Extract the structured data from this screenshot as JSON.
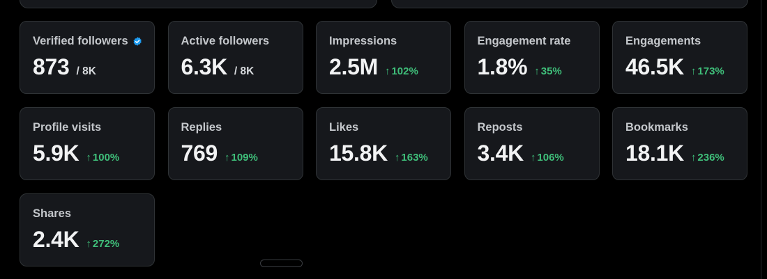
{
  "colors": {
    "background": "#000000",
    "card_background": "#16181c",
    "card_border": "#2f3336",
    "positive_change": "#3fbf7a",
    "verified_badge": "#1d9bf0"
  },
  "metrics": [
    {
      "label": "Verified followers",
      "value": "873",
      "suffix": "/ 8K",
      "change": "",
      "verified_icon": "verified-badge-icon"
    },
    {
      "label": "Active followers",
      "value": "6.3K",
      "suffix": "/ 8K",
      "change": ""
    },
    {
      "label": "Impressions",
      "value": "2.5M",
      "suffix": "",
      "change": "102%"
    },
    {
      "label": "Engagement rate",
      "value": "1.8%",
      "suffix": "",
      "change": "35%"
    },
    {
      "label": "Engagements",
      "value": "46.5K",
      "suffix": "",
      "change": "173%"
    },
    {
      "label": "Profile visits",
      "value": "5.9K",
      "suffix": "",
      "change": "100%"
    },
    {
      "label": "Replies",
      "value": "769",
      "suffix": "",
      "change": "109%"
    },
    {
      "label": "Likes",
      "value": "15.8K",
      "suffix": "",
      "change": "163%"
    },
    {
      "label": "Reposts",
      "value": "3.4K",
      "suffix": "",
      "change": "106%"
    },
    {
      "label": "Bookmarks",
      "value": "18.1K",
      "suffix": "",
      "change": "236%"
    },
    {
      "label": "Shares",
      "value": "2.4K",
      "suffix": "",
      "change": "272%"
    }
  ],
  "change_arrow": "↑"
}
